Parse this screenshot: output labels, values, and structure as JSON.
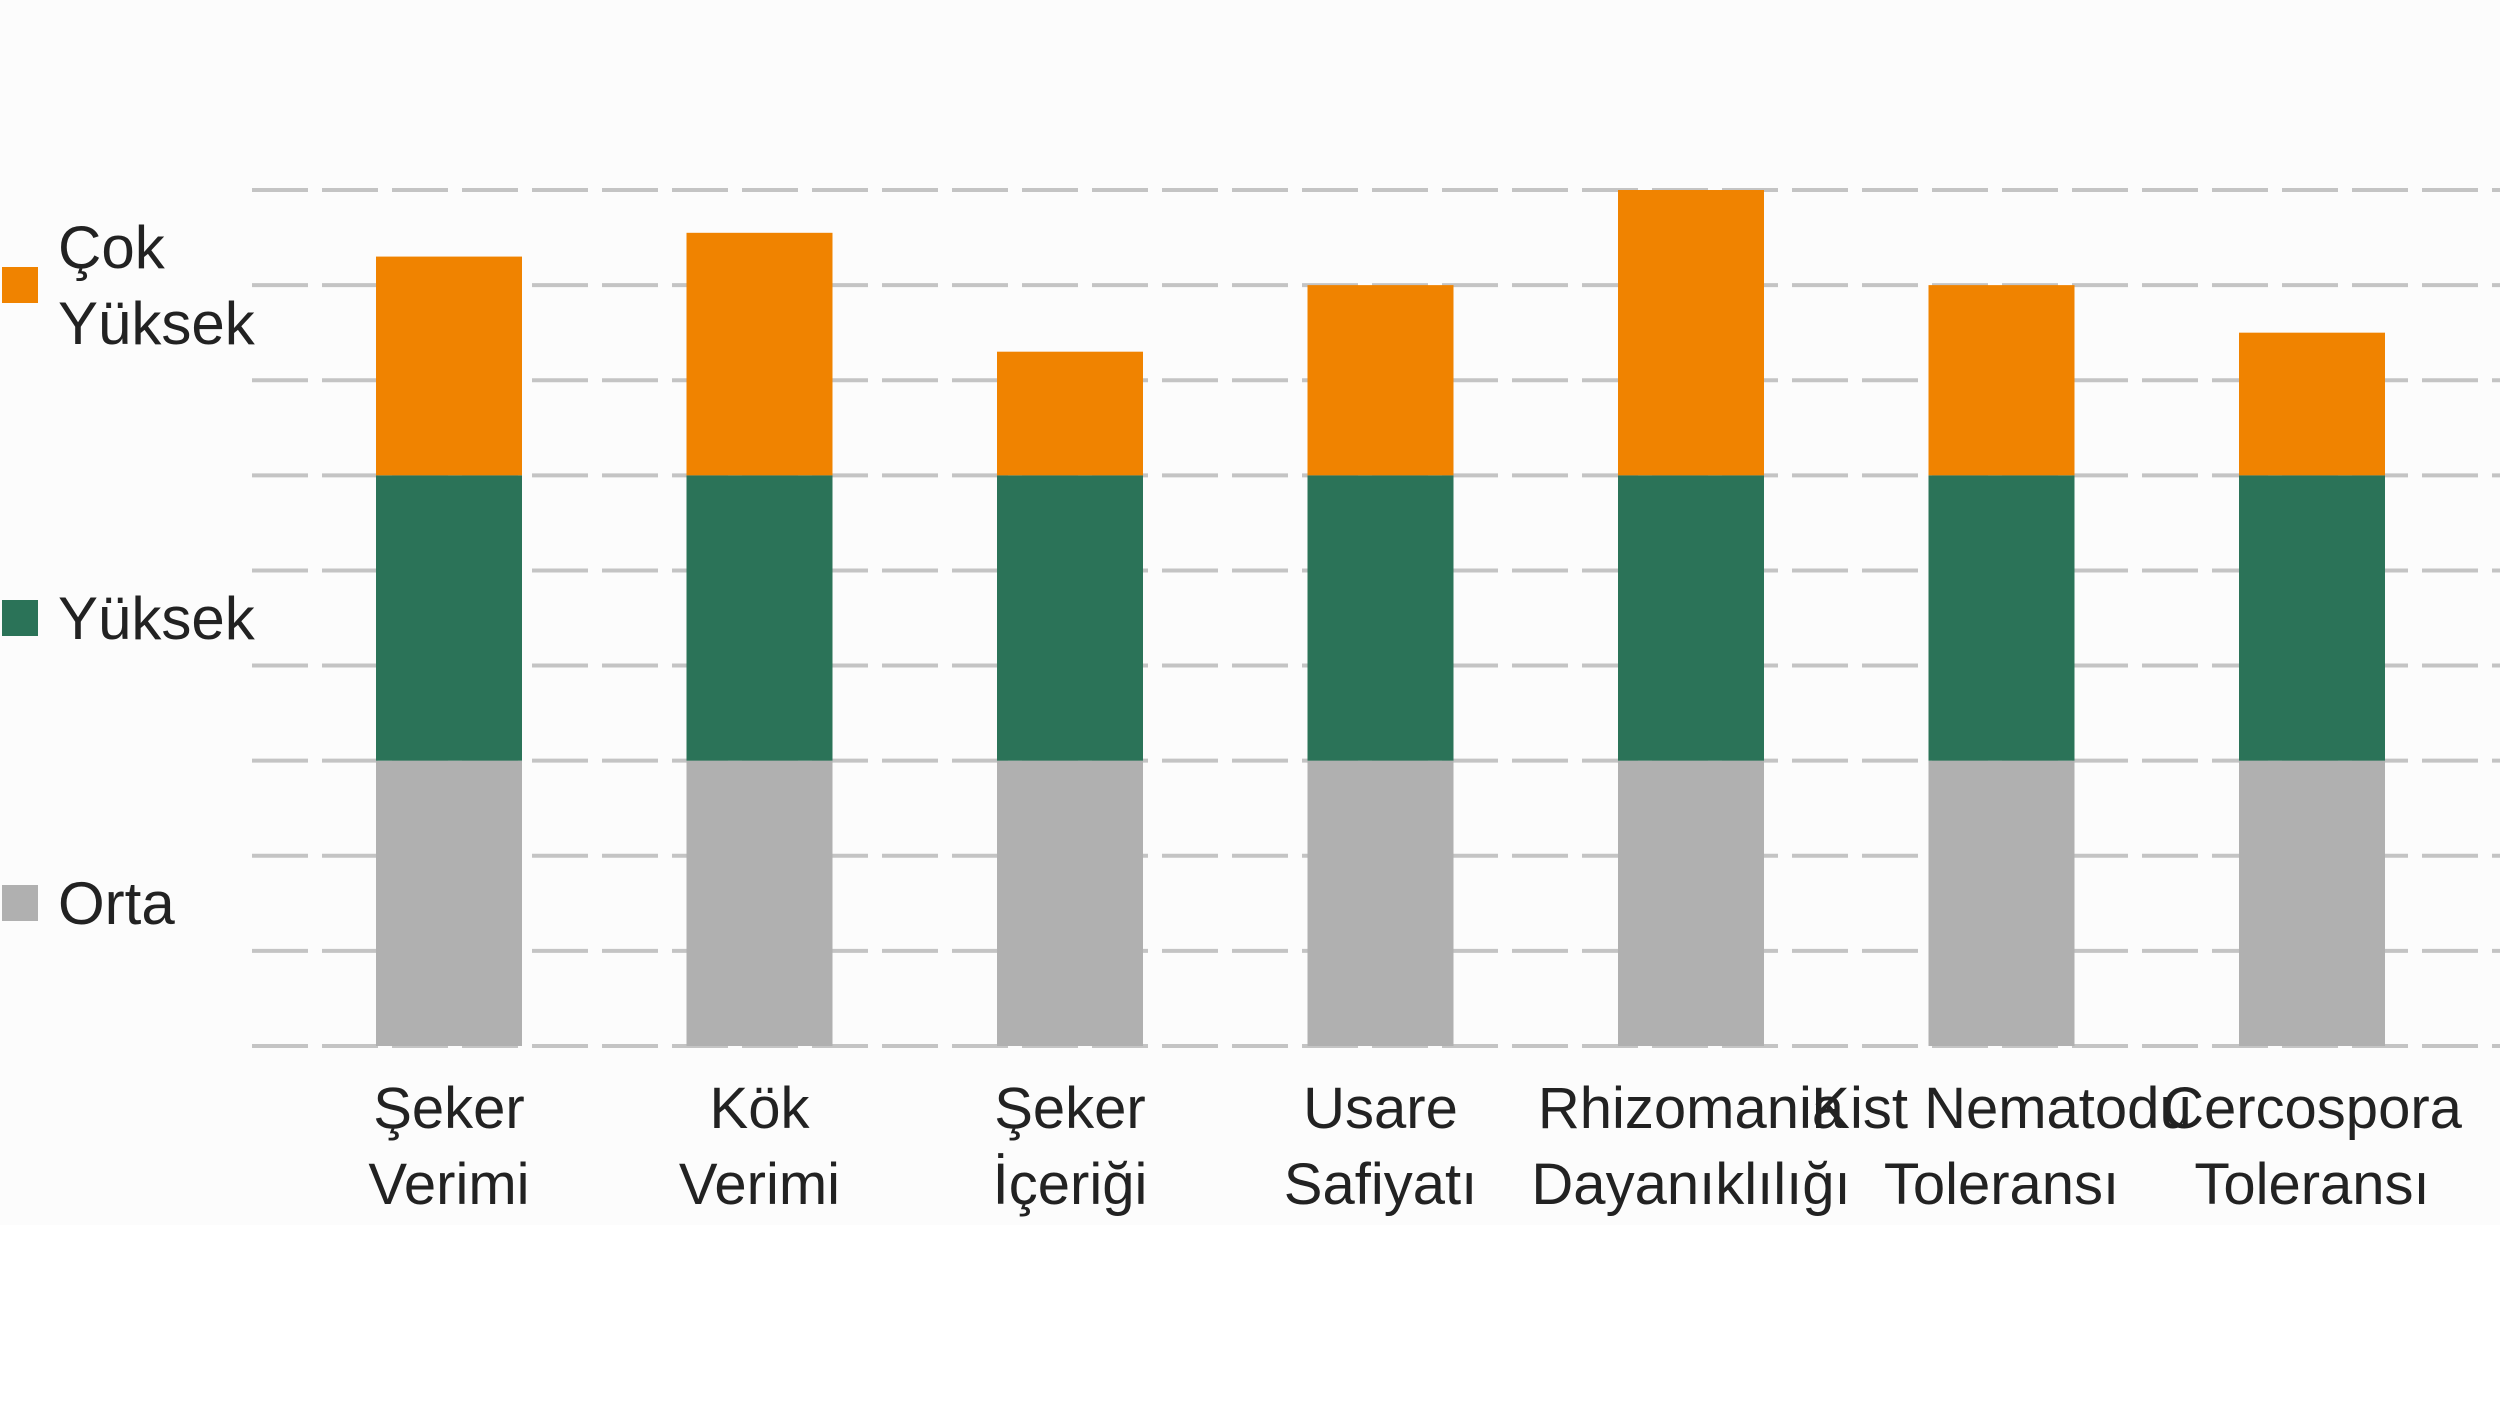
{
  "chart_data": {
    "type": "bar",
    "stacked": true,
    "title": "",
    "xlabel": "",
    "ylabel": "",
    "categories": [
      [
        "Şeker",
        "Verimi"
      ],
      [
        "Kök",
        "Verimi"
      ],
      [
        "Şeker",
        "İçeriği"
      ],
      [
        "Usare",
        "Safiyatı"
      ],
      [
        "Rhizomania",
        "Dayanıklılığı"
      ],
      [
        "Kist Nematodu",
        "Toleransı"
      ],
      [
        "Cercospora",
        "Toleransı"
      ]
    ],
    "series": [
      {
        "name": "Orta",
        "color": "#b0b0b0",
        "values": [
          3,
          3,
          3,
          3,
          3,
          3,
          3
        ]
      },
      {
        "name": "Yüksek",
        "color": "#2b7358",
        "values": [
          3,
          3,
          3,
          3,
          3,
          3,
          3
        ]
      },
      {
        "name": "Çok Yüksek",
        "color": "#f08300",
        "values": [
          2.3,
          2.55,
          1.3,
          2.0,
          3.0,
          2.0,
          1.5
        ]
      }
    ],
    "legend": {
      "position": "left",
      "items": [
        {
          "label_lines": [
            "Çok",
            "Yüksek"
          ],
          "color": "#f08300"
        },
        {
          "label_lines": [
            "Yüksek"
          ],
          "color": "#2b7358"
        },
        {
          "label_lines": [
            "Orta"
          ],
          "color": "#b0b0b0"
        }
      ]
    },
    "ylim": [
      0,
      9
    ],
    "ygrid_step": 1,
    "grid": true,
    "grid_style": "dashed"
  }
}
